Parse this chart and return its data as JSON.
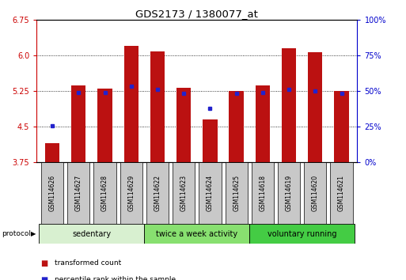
{
  "title": "GDS2173 / 1380077_at",
  "categories": [
    "GSM114626",
    "GSM114627",
    "GSM114628",
    "GSM114629",
    "GSM114622",
    "GSM114623",
    "GSM114624",
    "GSM114625",
    "GSM114618",
    "GSM114619",
    "GSM114620",
    "GSM114621"
  ],
  "red_values": [
    4.15,
    5.37,
    5.3,
    6.2,
    6.08,
    5.32,
    4.65,
    5.25,
    5.37,
    6.15,
    6.06,
    5.25
  ],
  "blue_values": [
    4.52,
    5.22,
    5.21,
    5.35,
    5.28,
    5.2,
    4.88,
    5.2,
    5.21,
    5.28,
    5.25,
    5.2
  ],
  "y_min": 3.75,
  "y_max": 6.75,
  "y_ticks_left": [
    3.75,
    4.5,
    5.25,
    6.0,
    6.75
  ],
  "y_ticks_right": [
    0,
    25,
    50,
    75,
    100
  ],
  "bar_color": "#bb1111",
  "blue_color": "#2222cc",
  "bar_width": 0.55,
  "groups": [
    {
      "label": "sedentary",
      "start": 0,
      "end": 4,
      "color": "#d8f0d0"
    },
    {
      "label": "twice a week activity",
      "start": 4,
      "end": 8,
      "color": "#88e070"
    },
    {
      "label": "voluntary running",
      "start": 8,
      "end": 12,
      "color": "#44cc44"
    }
  ],
  "protocol_label": "protocol",
  "legend_red_label": "transformed count",
  "legend_blue_label": "percentile rank within the sample",
  "left_axis_color": "#cc0000",
  "right_axis_color": "#0000cc",
  "grid_linestyle": "dotted",
  "sample_box_color": "#c8c8c8",
  "sample_box_edge": "#000000"
}
